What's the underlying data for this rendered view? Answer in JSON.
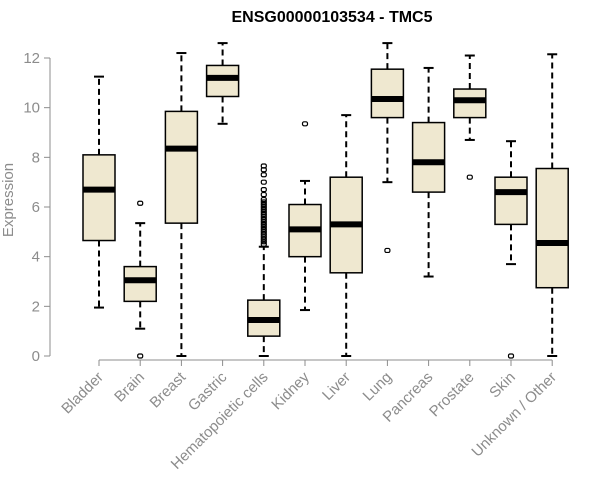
{
  "chart_data": {
    "type": "boxplot",
    "title": "ENSG00000103534 - TMC5",
    "xlabel": "",
    "ylabel": "Expression",
    "ylim": [
      0,
      12
    ],
    "yticks": [
      0,
      2,
      4,
      6,
      8,
      10,
      12
    ],
    "box_color": "#efe8d0",
    "categories": [
      "Bladder",
      "Brain",
      "Breast",
      "Gastric",
      "Hematopoietic cells",
      "Kidney",
      "Liver",
      "Lung",
      "Pancreas",
      "Prostate",
      "Skin",
      "Unknown / Other"
    ],
    "series": [
      {
        "name": "Bladder",
        "min": 1.95,
        "q1": 4.65,
        "median": 6.7,
        "q3": 8.1,
        "max": 11.25,
        "outliers": []
      },
      {
        "name": "Brain",
        "min": 1.1,
        "q1": 2.2,
        "median": 3.05,
        "q3": 3.6,
        "max": 5.35,
        "outliers": [
          6.15,
          0.0
        ]
      },
      {
        "name": "Breast",
        "min": 0.0,
        "q1": 5.35,
        "median": 8.35,
        "q3": 9.85,
        "max": 12.2,
        "outliers": []
      },
      {
        "name": "Gastric",
        "min": 9.35,
        "q1": 10.45,
        "median": 11.2,
        "q3": 11.7,
        "max": 12.6,
        "outliers": []
      },
      {
        "name": "Hematopoietic cells",
        "min": 0.0,
        "q1": 0.8,
        "median": 1.45,
        "q3": 2.25,
        "max": 4.4,
        "outliers": [
          4.5,
          4.6,
          4.7,
          4.8,
          4.9,
          5.0,
          5.1,
          5.2,
          5.3,
          5.4,
          5.5,
          5.6,
          5.7,
          5.8,
          5.9,
          6.0,
          6.1,
          6.2,
          6.3,
          6.5,
          6.7,
          7.0,
          7.3,
          7.5,
          7.65
        ]
      },
      {
        "name": "Kidney",
        "min": 1.85,
        "q1": 4.0,
        "median": 5.1,
        "q3": 6.1,
        "max": 7.05,
        "outliers": [
          9.35
        ]
      },
      {
        "name": "Liver",
        "min": 0.0,
        "q1": 3.35,
        "median": 5.3,
        "q3": 7.2,
        "max": 9.7,
        "outliers": []
      },
      {
        "name": "Lung",
        "min": 7.0,
        "q1": 9.6,
        "median": 10.35,
        "q3": 11.55,
        "max": 12.6,
        "outliers": [
          4.25
        ]
      },
      {
        "name": "Pancreas",
        "min": 3.2,
        "q1": 6.6,
        "median": 7.8,
        "q3": 9.4,
        "max": 11.6,
        "outliers": []
      },
      {
        "name": "Prostate",
        "min": 8.7,
        "q1": 9.6,
        "median": 10.3,
        "q3": 10.75,
        "max": 12.1,
        "outliers": [
          7.2
        ]
      },
      {
        "name": "Skin",
        "min": 3.7,
        "q1": 5.3,
        "median": 6.6,
        "q3": 7.2,
        "max": 8.65,
        "outliers": [
          0.0
        ]
      },
      {
        "name": "Unknown / Other",
        "min": 0.0,
        "q1": 2.75,
        "median": 4.55,
        "q3": 7.55,
        "max": 12.15,
        "outliers": []
      }
    ]
  }
}
